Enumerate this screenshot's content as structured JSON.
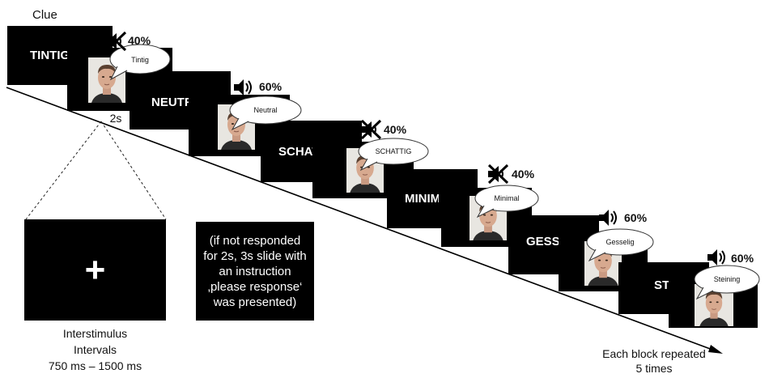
{
  "header": {
    "title": "Clue"
  },
  "trials": [
    {
      "clue": "TINTIG",
      "speech": "Tintig",
      "volume": "40%",
      "muted": true
    },
    {
      "clue": "NEUTRAL",
      "speech": "Neutral",
      "volume": "60%",
      "muted": false
    },
    {
      "clue": "SCHATTIG",
      "speech": "SCHATTIG",
      "volume": "40%",
      "muted": true
    },
    {
      "clue": "MINIMAL",
      "speech": "Minimal",
      "volume": "40%",
      "muted": true
    },
    {
      "clue": "GESSELIG",
      "speech": "Gesselig",
      "volume": "60%",
      "muted": false
    },
    {
      "clue": "STEINING",
      "speech": "Steining",
      "volume": "60%",
      "muted": false
    }
  ],
  "duration": "2s",
  "fixation": {
    "symbol": "+"
  },
  "isi": {
    "line1": "Interstimulus",
    "line2": "Intervals",
    "line3": "750 ms – 1500 ms"
  },
  "note": {
    "text": "(if not responded for 2s, 3s slide with an instruction ‚please response‘ was presented)"
  },
  "repeat": {
    "line1": "Each block repeated",
    "line2": "5 times"
  },
  "icons": {
    "speaker": "speaker-icon",
    "muted": "speaker-muted-icon",
    "face": "face-photo"
  }
}
